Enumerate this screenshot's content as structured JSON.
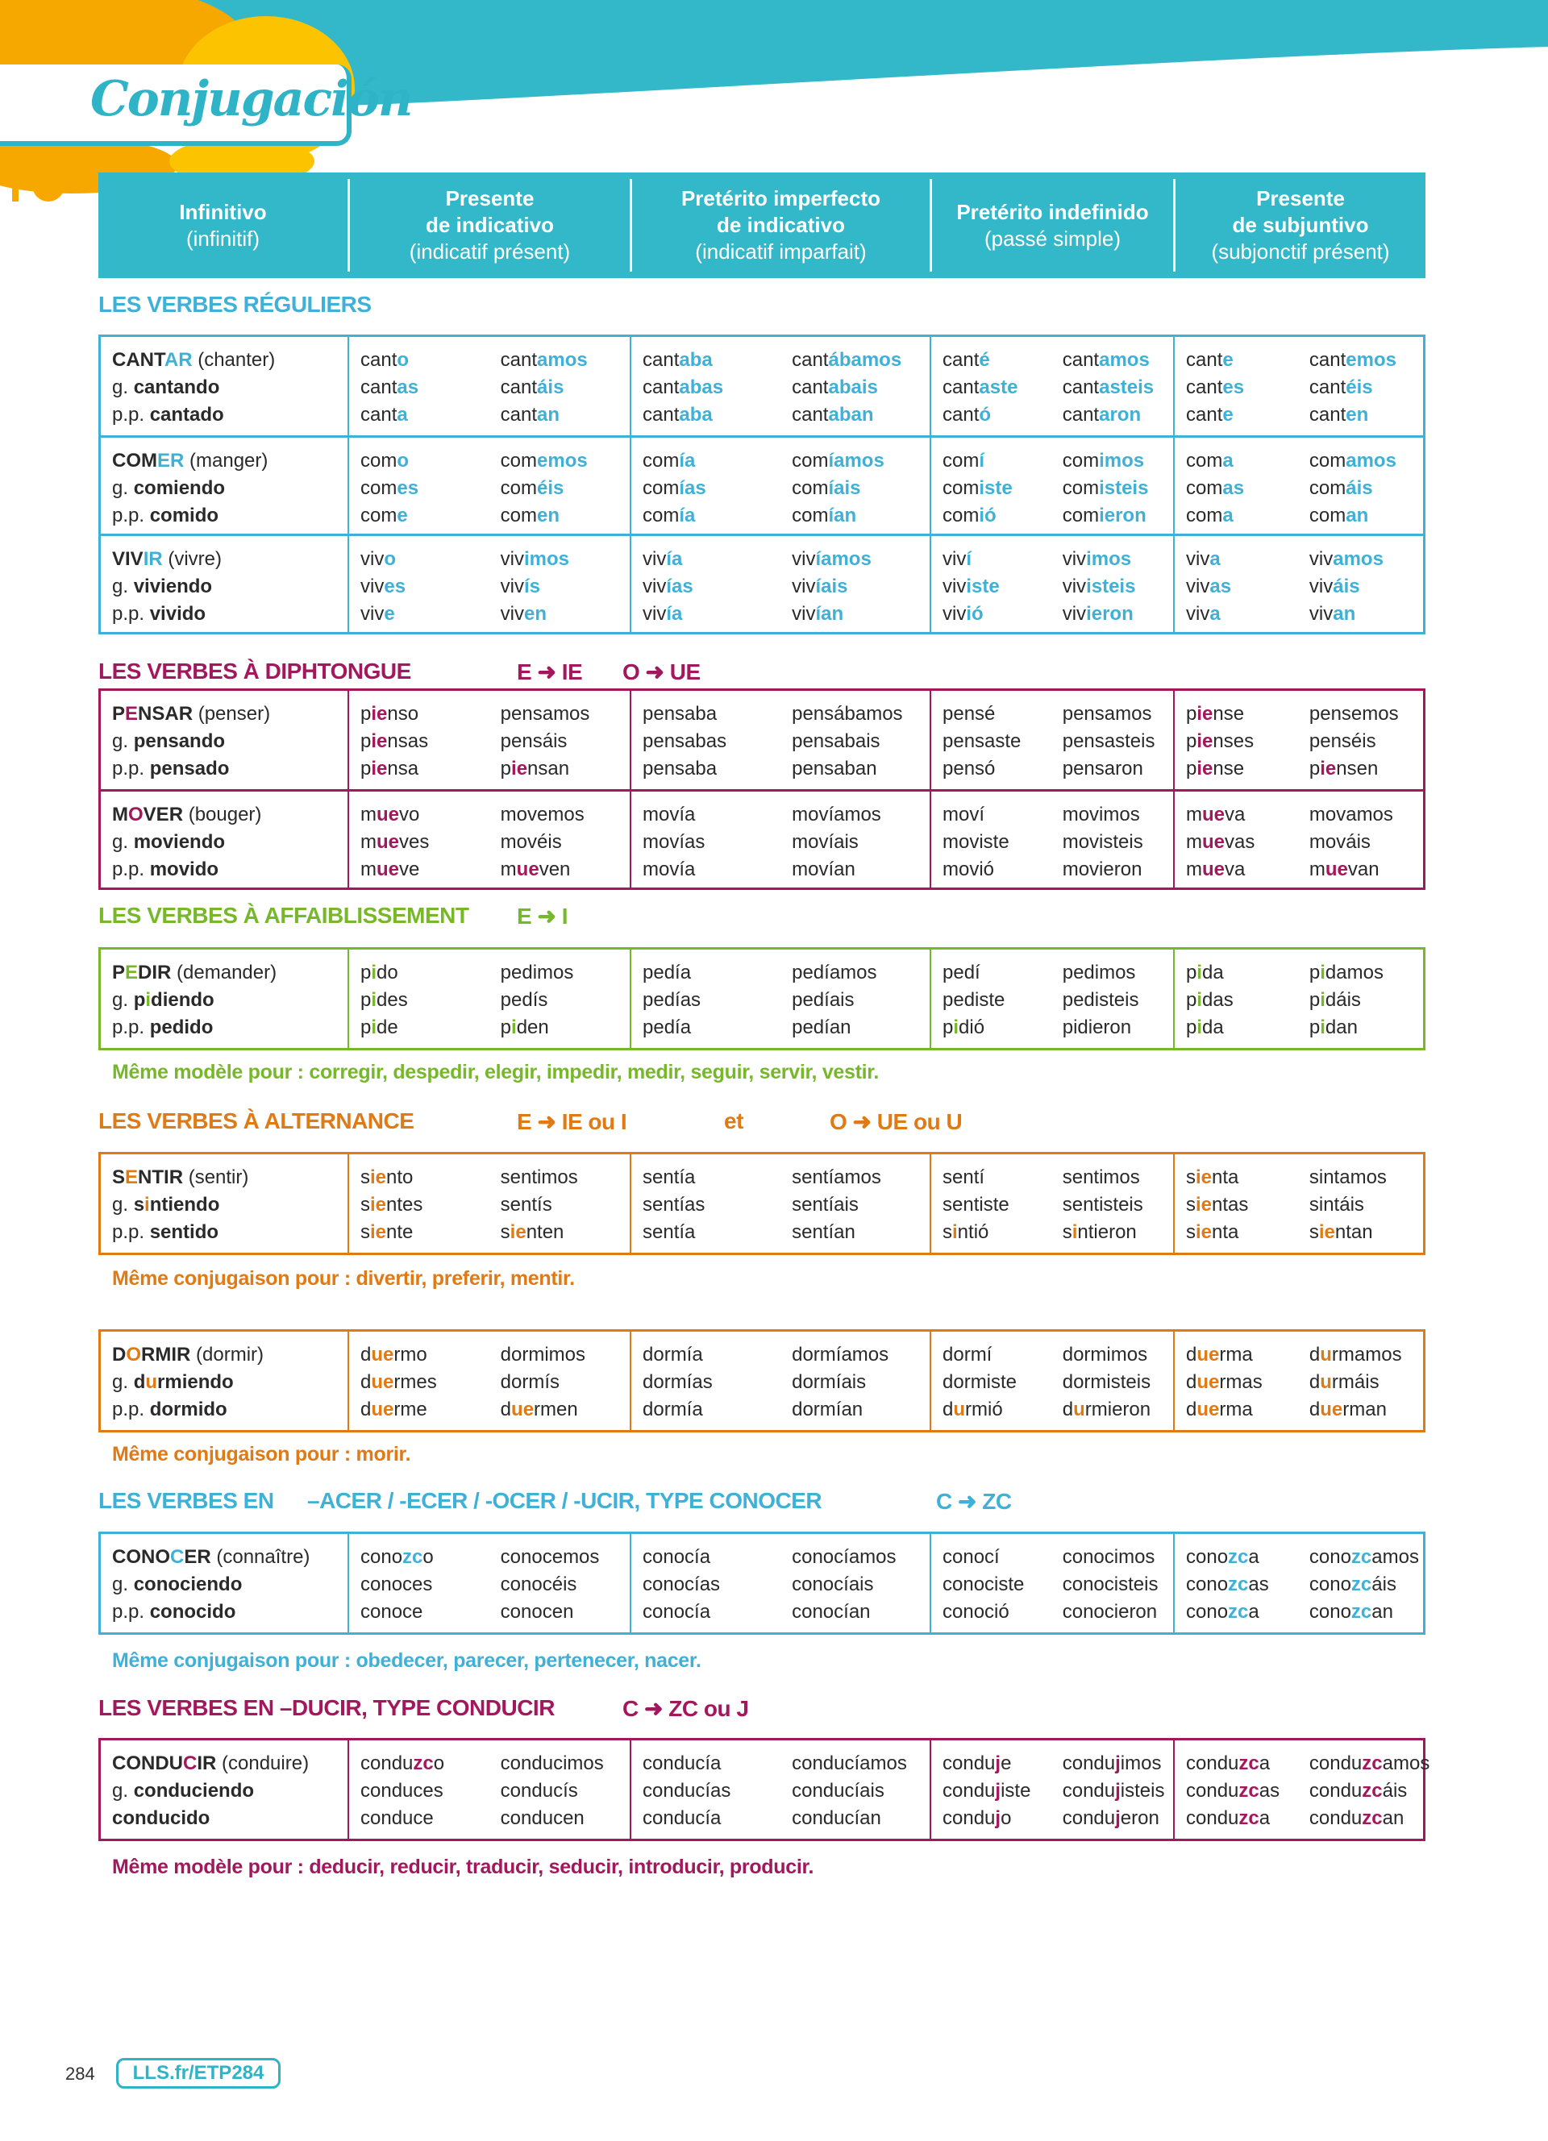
{
  "page_title": "Conjugación",
  "header": [
    {
      "main": [
        "Infinitivo"
      ],
      "sub": "(infinitif)"
    },
    {
      "main": [
        "Presente",
        "de indicativo"
      ],
      "sub": "(indicatif présent)"
    },
    {
      "main": [
        "Pretérito imperfecto",
        "de indicativo"
      ],
      "sub": "(indicatif imparfait)"
    },
    {
      "main": [
        "Pretérito indefinido"
      ],
      "sub": "(passé simple)"
    },
    {
      "main": [
        "Presente",
        "de subjuntivo"
      ],
      "sub": "(subjonctif présent)"
    }
  ],
  "colors": {
    "teal": "#33b8c9",
    "blue": "#3fb0d6",
    "magenta": "#a3175c",
    "green": "#76b82a",
    "orange": "#e07a14"
  },
  "sections": [
    {
      "id": "regular",
      "color": "blue",
      "title": [
        "LES VERBES RÉGULIERS"
      ],
      "tables": [
        {
          "rows": [
            {
              "inf": "CANT[AR]",
              "trans": "(chanter)",
              "g": "cantando",
              "pp": "cantado",
              "pp_prefix": "p.p.",
              "tenses": [
                [
                  "cant[o]",
                  "cant[as]",
                  "cant[a]",
                  "cant[amos]",
                  "cant[áis]",
                  "cant[an]"
                ],
                [
                  "cant[aba]",
                  "cant[abas]",
                  "cant[aba]",
                  "cant[ábamos]",
                  "cant[abais]",
                  "cant[aban]"
                ],
                [
                  "cant[é]",
                  "cant[aste]",
                  "cant[ó]",
                  "cant[amos]",
                  "cant[asteis]",
                  "cant[aron]"
                ],
                [
                  "cant[e]",
                  "cant[es]",
                  "cant[e]",
                  "cant[emos]",
                  "cant[éis]",
                  "cant[en]"
                ]
              ]
            },
            {
              "inf": "COM[ER]",
              "trans": "(manger)",
              "g": "comiendo",
              "pp": "comido",
              "pp_prefix": "p.p.",
              "tenses": [
                [
                  "com[o]",
                  "com[es]",
                  "com[e]",
                  "com[emos]",
                  "com[éis]",
                  "com[en]"
                ],
                [
                  "com[ía]",
                  "com[ías]",
                  "com[ía]",
                  "com[íamos]",
                  "com[íais]",
                  "com[ían]"
                ],
                [
                  "com[í]",
                  "com[iste]",
                  "com[ió]",
                  "com[imos]",
                  "com[isteis]",
                  "com[ieron]"
                ],
                [
                  "com[a]",
                  "com[as]",
                  "com[a]",
                  "com[amos]",
                  "com[áis]",
                  "com[an]"
                ]
              ]
            },
            {
              "inf": "VIV[IR]",
              "trans": "(vivre)",
              "g": "viviendo",
              "pp": "vivido",
              "pp_prefix": "p.p.",
              "tenses": [
                [
                  "viv[o]",
                  "viv[es]",
                  "viv[e]",
                  "viv[imos]",
                  "viv[ís]",
                  "viv[en]"
                ],
                [
                  "viv[ía]",
                  "viv[ías]",
                  "viv[ía]",
                  "viv[íamos]",
                  "viv[íais]",
                  "viv[ían]"
                ],
                [
                  "viv[í]",
                  "viv[iste]",
                  "viv[ió]",
                  "viv[imos]",
                  "viv[isteis]",
                  "viv[ieron]"
                ],
                [
                  "viv[a]",
                  "viv[as]",
                  "viv[a]",
                  "viv[amos]",
                  "viv[áis]",
                  "viv[an]"
                ]
              ]
            }
          ]
        }
      ],
      "notes": []
    },
    {
      "id": "diphtongue",
      "color": "magenta",
      "title": [
        "LES VERBES À DIPHTONGUE",
        "E ➜ IE",
        "O ➜ UE"
      ],
      "tables": [
        {
          "rows": [
            {
              "inf": "P[E]NSAR",
              "trans": "(penser)",
              "g": "pensando",
              "pp": "pensado",
              "pp_prefix": "p.p.",
              "tenses": [
                [
                  "p[ie]nso",
                  "p[ie]nsas",
                  "p[ie]nsa",
                  "pensamos",
                  "pensáis",
                  "p[ie]nsan"
                ],
                [
                  "pensaba",
                  "pensabas",
                  "pensaba",
                  "pensábamos",
                  "pensabais",
                  "pensaban"
                ],
                [
                  "pensé",
                  "pensaste",
                  "pensó",
                  "pensamos",
                  "pensasteis",
                  "pensaron"
                ],
                [
                  "p[ie]nse",
                  "p[ie]nses",
                  "p[ie]nse",
                  "pensemos",
                  "penséis",
                  "p[ie]nsen"
                ]
              ]
            },
            {
              "inf": "M[O]VER",
              "trans": "(bouger)",
              "g": "moviendo",
              "pp": "movido",
              "pp_prefix": "p.p.",
              "tenses": [
                [
                  "m[ue]vo",
                  "m[ue]ves",
                  "m[ue]ve",
                  "movemos",
                  "movéis",
                  "m[ue]ven"
                ],
                [
                  "movía",
                  "movías",
                  "movía",
                  "movíamos",
                  "movíais",
                  "movían"
                ],
                [
                  "moví",
                  "moviste",
                  "movió",
                  "movimos",
                  "movisteis",
                  "movieron"
                ],
                [
                  "m[ue]va",
                  "m[ue]vas",
                  "m[ue]va",
                  "movamos",
                  "mováis",
                  "m[ue]van"
                ]
              ]
            }
          ]
        }
      ],
      "notes": []
    },
    {
      "id": "affaiblissement",
      "color": "green",
      "title": [
        "LES VERBES À AFFAIBLISSEMENT",
        "E ➜ I"
      ],
      "tables": [
        {
          "rows": [
            {
              "inf": "P[E]DIR",
              "trans": "(demander)",
              "g": "p[i]diendo",
              "pp": "pedido",
              "pp_prefix": "p.p.",
              "tenses": [
                [
                  "p[i]do",
                  "p[i]des",
                  "p[i]de",
                  "pedimos",
                  "pedís",
                  "p[i]den"
                ],
                [
                  "pedía",
                  "pedías",
                  "pedía",
                  "pedíamos",
                  "pedíais",
                  "pedían"
                ],
                [
                  "pedí",
                  "pediste",
                  "p[i]dió",
                  "pedimos",
                  "pedisteis",
                  "pidieron"
                ],
                [
                  "p[i]da",
                  "p[i]das",
                  "p[i]da",
                  "p[i]damos",
                  "p[i]dáis",
                  "p[i]dan"
                ]
              ]
            }
          ]
        }
      ],
      "notes": [
        "Même modèle pour : corregir, despedir, elegir, impedir, medir, seguir, servir, vestir."
      ]
    },
    {
      "id": "alternance",
      "color": "orange",
      "title": [
        "LES VERBES À ALTERNANCE",
        "E ➜ IE ou I",
        "et",
        "O ➜ UE ou U"
      ],
      "tables": [
        {
          "rows": [
            {
              "inf": "S[E]NTIR",
              "trans": "(sentir)",
              "g": "s[i]ntiendo",
              "pp": "sentido",
              "pp_prefix": "p.p.",
              "tenses": [
                [
                  "s[ie]nto",
                  "s[ie]ntes",
                  "s[ie]nte",
                  "sentimos",
                  "sentís",
                  "s[ie]nten"
                ],
                [
                  "sentía",
                  "sentías",
                  "sentía",
                  "sentíamos",
                  "sentíais",
                  "sentían"
                ],
                [
                  "sentí",
                  "sentiste",
                  "s[i]ntió",
                  "sentimos",
                  "sentisteis",
                  "s[i]ntieron"
                ],
                [
                  "s[ie]nta",
                  "s[ie]ntas",
                  "s[ie]nta",
                  "sintamos",
                  "sintáis",
                  "s[ie]ntan"
                ]
              ]
            }
          ]
        },
        {
          "rows": [
            {
              "inf": "D[O]RMIR",
              "trans": "(dormir)",
              "g": "d[u]rmiendo",
              "pp": "dormido",
              "pp_prefix": "p.p.",
              "tenses": [
                [
                  "d[ue]rmo",
                  "d[ue]rmes",
                  "d[ue]rme",
                  "dormimos",
                  "dormís",
                  "d[ue]rmen"
                ],
                [
                  "dormía",
                  "dormías",
                  "dormía",
                  "dormíamos",
                  "dormíais",
                  "dormían"
                ],
                [
                  "dormí",
                  "dormiste",
                  "d[u]rmió",
                  "dormimos",
                  "dormisteis",
                  "d[u]rmieron"
                ],
                [
                  "d[ue]rma",
                  "d[ue]rmas",
                  "d[ue]rma",
                  "d[u]rmamos",
                  "d[u]rmáis",
                  "d[ue]rman"
                ]
              ]
            }
          ]
        }
      ],
      "notes": [
        "Même conjugaison pour : divertir, preferir, mentir.",
        "Même conjugaison pour : morir."
      ]
    },
    {
      "id": "conocer",
      "color": "blue",
      "title": [
        "LES VERBES EN",
        "–ACER / -ECER / -OCER / -UCIR, TYPE CONOCER",
        "C ➜ ZC"
      ],
      "tables": [
        {
          "rows": [
            {
              "inf": "CONO[C]ER",
              "trans": "(connaître)",
              "g": "conociendo",
              "pp": "conocido",
              "pp_prefix": "p.p.",
              "tenses": [
                [
                  "cono[zc]o",
                  "conoces",
                  "conoce",
                  "conocemos",
                  "conocéis",
                  "conocen"
                ],
                [
                  "conocía",
                  "conocías",
                  "conocía",
                  "conocíamos",
                  "conocíais",
                  "conocían"
                ],
                [
                  "conocí",
                  "conociste",
                  "conoció",
                  "conocimos",
                  "conocisteis",
                  "conocieron"
                ],
                [
                  "cono[zc]a",
                  "cono[zc]as",
                  "cono[zc]a",
                  "cono[zc]amos",
                  "cono[zc]áis",
                  "cono[zc]an"
                ]
              ]
            }
          ]
        }
      ],
      "notes": [
        "Même conjugaison pour : obedecer, parecer, pertenecer, nacer."
      ]
    },
    {
      "id": "conducir",
      "color": "magenta",
      "title": [
        "LES VERBES EN –DUCIR, TYPE CONDUCIR",
        "C ➜ ZC ou J"
      ],
      "tables": [
        {
          "rows": [
            {
              "inf": "CONDU[C]IR",
              "trans": "(conduire)",
              "g": "conduciendo",
              "pp": "conducido",
              "pp_prefix": "",
              "tenses": [
                [
                  "condu[zc]o",
                  "conduces",
                  "conduce",
                  "conducimos",
                  "conducís",
                  "conducen"
                ],
                [
                  "conducía",
                  "conducías",
                  "conducía",
                  "conducíamos",
                  "conducíais",
                  "conducían"
                ],
                [
                  "condu[j]e",
                  "condu[j]iste",
                  "condu[j]o",
                  "condu[j]imos",
                  "condu[j]isteis",
                  "condu[j]eron"
                ],
                [
                  "condu[zc]a",
                  "condu[zc]as",
                  "condu[zc]a",
                  "condu[zc]amos",
                  "condu[zc]áis",
                  "condu[zc]an"
                ]
              ]
            }
          ]
        }
      ],
      "notes": [
        "Même modèle pour : deducir, reducir, traducir, seducir, introducir, producir."
      ]
    }
  ],
  "gerund_prefix": "g.",
  "footer": {
    "page_number": "284",
    "link": "LLS.fr/ETP284"
  }
}
